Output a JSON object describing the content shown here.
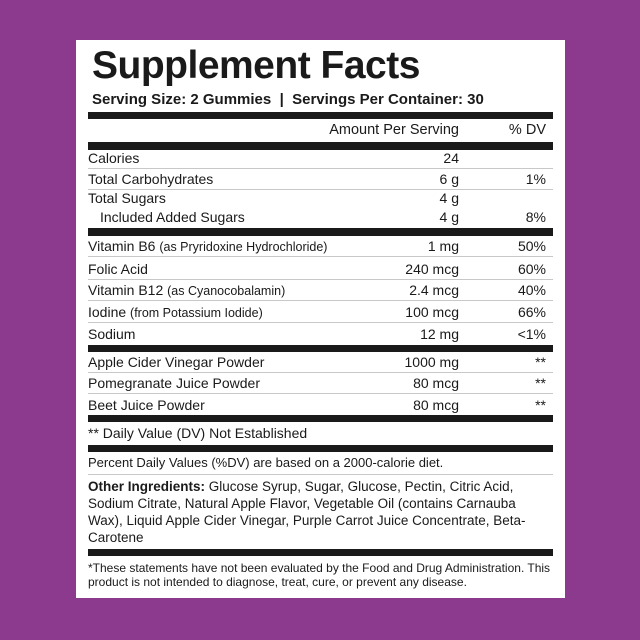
{
  "colors": {
    "background": "#8b3a8e",
    "panel": "#ffffff",
    "text": "#1a1a1a"
  },
  "title": "Supplement Facts",
  "serving_line": "Serving Size: 2 Gummies  |  Servings Per Container: 30",
  "header": {
    "amount": "Amount Per Serving",
    "dv": "% DV"
  },
  "group1": [
    {
      "name": "Calories",
      "amount": "24",
      "dv": ""
    },
    {
      "name": "Total Carbohydrates",
      "amount": "6 g",
      "dv": "1%"
    },
    {
      "name": "Total Sugars",
      "amount": "4 g",
      "dv": ""
    },
    {
      "name": "Included Added Sugars",
      "amount": "4 g",
      "dv": "8%"
    }
  ],
  "group2": [
    {
      "name": "Vitamin B6",
      "sub": "(as Pryridoxine Hydrochloride)",
      "amount": "1 mg",
      "dv": "50%"
    },
    {
      "name": "Folic Acid",
      "sub": "",
      "amount": "240 mcg",
      "dv": "60%"
    },
    {
      "name": "Vitamin B12",
      "sub": "(as Cyanocobalamin)",
      "amount": "2.4 mcg",
      "dv": "40%"
    },
    {
      "name": "Iodine",
      "sub": "(from Potassium Iodide)",
      "amount": "100 mcg",
      "dv": "66%"
    },
    {
      "name": "Sodium",
      "sub": "",
      "amount": "12 mg",
      "dv": "<1%"
    }
  ],
  "group3": [
    {
      "name": "Apple Cider Vinegar Powder",
      "amount": "1000 mg",
      "dv": "**"
    },
    {
      "name": "Pomegranate Juice Powder",
      "amount": "80 mcg",
      "dv": "**"
    },
    {
      "name": "Beet Juice Powder",
      "amount": "80 mcg",
      "dv": "**"
    }
  ],
  "dv_note": "** Daily Value (DV) Not Established",
  "percent_note": "Percent Daily Values (%DV) are based on a 2000-calorie diet.",
  "other_label": "Other Ingredients:",
  "other_text": " Glucose Syrup, Sugar, Glucose, Pectin, Citric Acid, Sodium Citrate, Natural Apple Flavor, Vegetable Oil (contains Carnauba Wax), Liquid Apple Cider Vinegar, Purple Carrot Juice Concentrate, Beta-Carotene",
  "disclaimer": "*These statements have not been evaluated by the Food and Drug Administration. This product is not intended to diagnose, treat, cure, or prevent any disease."
}
